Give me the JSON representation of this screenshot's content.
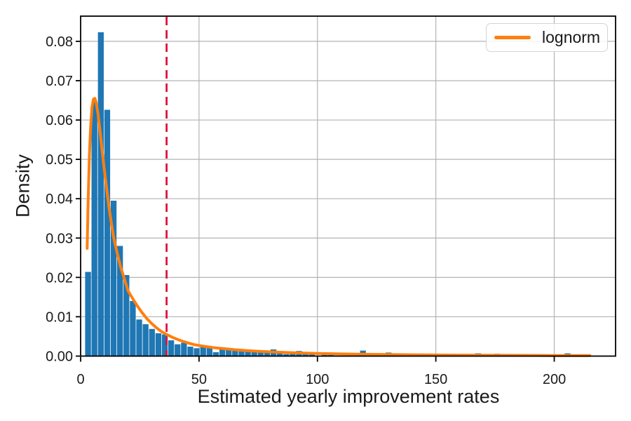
{
  "figure": {
    "background": "#ffffff",
    "text_color": "#1a1a1a"
  },
  "chart_data": {
    "type": "histogram+line",
    "title": "",
    "xlabel": "Estimated yearly improvement rates",
    "ylabel": "Density",
    "xlim": [
      0,
      225.9
    ],
    "ylim": [
      0,
      0.0864
    ],
    "grid": true,
    "grid_color": "#b3b3b3",
    "spine_color": "#000000",
    "xticks": [
      {
        "v": 0,
        "label": "0"
      },
      {
        "v": 50,
        "label": "50"
      },
      {
        "v": 100,
        "label": "100"
      },
      {
        "v": 150,
        "label": "150"
      },
      {
        "v": 200,
        "label": "200"
      }
    ],
    "yticks": [
      {
        "v": 0.0,
        "label": "0.00"
      },
      {
        "v": 0.01,
        "label": "0.01"
      },
      {
        "v": 0.02,
        "label": "0.02"
      },
      {
        "v": 0.03,
        "label": "0.03"
      },
      {
        "v": 0.04,
        "label": "0.04"
      },
      {
        "v": 0.05,
        "label": "0.05"
      },
      {
        "v": 0.06,
        "label": "0.06"
      },
      {
        "v": 0.07,
        "label": "0.07"
      },
      {
        "v": 0.08,
        "label": "0.08"
      }
    ],
    "histogram": {
      "color": "#1f77b4",
      "bin_start": 1.9,
      "bin_width": 2.7,
      "heights": [
        0.0214,
        0.0647,
        0.0823,
        0.0626,
        0.0395,
        0.028,
        0.0206,
        0.014,
        0.0093,
        0.0081,
        0.0069,
        0.0058,
        0.0055,
        0.004,
        0.003,
        0.0034,
        0.0024,
        0.002,
        0.0026,
        0.0023,
        0.001,
        0.0017,
        0.0019,
        0.0014,
        0.0012,
        0.0017,
        0.0015,
        0.001,
        0.0011,
        0.0017,
        0.0011,
        0.0005,
        0.0008,
        0.0013,
        0.0009,
        0.0009,
        0.0001,
        0.0008,
        0.0003,
        0.0001,
        0.0001,
        0.0001,
        0.0001,
        0.0014,
        0.0001,
        0.0001,
        0.0001,
        0.0009,
        0.0001,
        0.0001,
        0.0001,
        0.0001,
        0.0001,
        0.0001,
        0.0001,
        0.0001,
        0.0001,
        0.0001,
        0.0001,
        0.0001,
        0.0001,
        0.0007,
        0.0001,
        0.0001,
        0.0006,
        0.0001,
        0.0001,
        0.0001,
        0.0001,
        0.0001,
        0.0001,
        0.0001,
        0.0001,
        0.0001,
        0.0001,
        0.0007,
        0.0001,
        0.0001,
        0.0002
      ]
    },
    "lognorm_curve": {
      "color": "#ff7f0e",
      "label": "lognorm",
      "line_width": 4,
      "points": [
        [
          2.75,
          0.0274
        ],
        [
          3.2,
          0.04
        ],
        [
          3.7,
          0.051
        ],
        [
          4.2,
          0.058
        ],
        [
          4.8,
          0.0632
        ],
        [
          5.4,
          0.0653
        ],
        [
          6.0,
          0.0655
        ],
        [
          6.6,
          0.0643
        ],
        [
          7.3,
          0.0617
        ],
        [
          8.1,
          0.0576
        ],
        [
          9,
          0.0527
        ],
        [
          10,
          0.0474
        ],
        [
          11,
          0.0424
        ],
        [
          12,
          0.0378
        ],
        [
          13,
          0.0337
        ],
        [
          14,
          0.03
        ],
        [
          15.5,
          0.026
        ],
        [
          17,
          0.0224
        ],
        [
          18.5,
          0.0196
        ],
        [
          20,
          0.0166
        ],
        [
          22,
          0.0146
        ],
        [
          24,
          0.0127
        ],
        [
          26,
          0.011
        ],
        [
          28,
          0.0095
        ],
        [
          30,
          0.0083
        ],
        [
          32,
          0.0072
        ],
        [
          34,
          0.0063
        ],
        [
          36.3,
          0.0055
        ],
        [
          39,
          0.0047
        ],
        [
          42,
          0.004
        ],
        [
          45,
          0.0034
        ],
        [
          48,
          0.0029
        ],
        [
          52,
          0.0025
        ],
        [
          56,
          0.00215
        ],
        [
          60,
          0.0019
        ],
        [
          65,
          0.00163
        ],
        [
          70,
          0.00141
        ],
        [
          75,
          0.00123
        ],
        [
          80,
          0.00108
        ],
        [
          85,
          0.00096
        ],
        [
          90,
          0.00085
        ],
        [
          95,
          0.00076
        ],
        [
          100,
          0.00068
        ],
        [
          110,
          0.00056
        ],
        [
          120,
          0.00047
        ],
        [
          130,
          0.0004
        ],
        [
          140,
          0.00034
        ],
        [
          150,
          0.00029
        ],
        [
          160,
          0.00025
        ],
        [
          170,
          0.00022
        ],
        [
          180,
          0.00019
        ],
        [
          190,
          0.00017
        ],
        [
          200,
          0.00015
        ],
        [
          208,
          0.00013
        ],
        [
          215,
          0.00012
        ]
      ]
    },
    "vline": {
      "x": 36.3,
      "color": "#dc143c",
      "style": "dashed",
      "line_width": 2.8
    },
    "legend": {
      "label": "lognorm",
      "position": "upper right",
      "line_color": "#ff7f0e"
    }
  }
}
